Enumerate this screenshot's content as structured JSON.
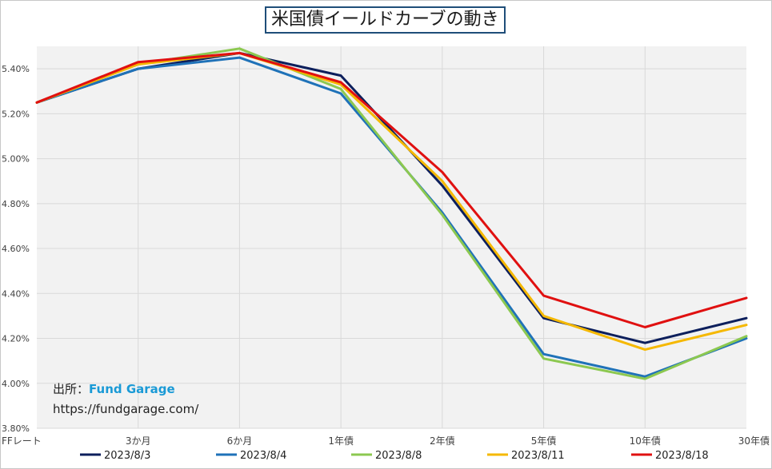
{
  "chart_data": {
    "type": "line",
    "title": "米国債イールドカーブの動き",
    "categories": [
      "FFレート",
      "3か月",
      "6か月",
      "1年債",
      "2年債",
      "5年債",
      "10年債",
      "30年債"
    ],
    "ylim": [
      3.8,
      5.5
    ],
    "yticks": [
      "3.80%",
      "4.00%",
      "4.20%",
      "4.40%",
      "4.60%",
      "4.80%",
      "5.00%",
      "5.20%",
      "5.40%"
    ],
    "ytick_values": [
      3.8,
      4.0,
      4.2,
      4.4,
      4.6,
      4.8,
      5.0,
      5.2,
      5.4
    ],
    "grid": true,
    "legend_position": "bottom",
    "series": [
      {
        "name": "2023/8/3",
        "color": "#0d1f5c",
        "values": [
          5.25,
          5.4,
          5.47,
          5.37,
          4.88,
          4.29,
          4.18,
          4.29
        ]
      },
      {
        "name": "2023/8/4",
        "color": "#1f72b8",
        "values": [
          5.25,
          5.4,
          5.45,
          5.29,
          4.76,
          4.13,
          4.03,
          4.2
        ]
      },
      {
        "name": "2023/8/8",
        "color": "#8cc850",
        "values": [
          5.25,
          5.42,
          5.49,
          5.31,
          4.75,
          4.11,
          4.02,
          4.21
        ]
      },
      {
        "name": "2023/8/11",
        "color": "#f5b800",
        "values": [
          5.25,
          5.42,
          5.47,
          5.33,
          4.9,
          4.3,
          4.15,
          4.26
        ]
      },
      {
        "name": "2023/8/18",
        "color": "#e01010",
        "values": [
          5.25,
          5.43,
          5.47,
          5.34,
          4.94,
          4.39,
          4.25,
          4.38
        ]
      }
    ]
  },
  "source": {
    "label": "出所：",
    "name": "Fund Garage",
    "url": "https://fundgarage.com/"
  }
}
